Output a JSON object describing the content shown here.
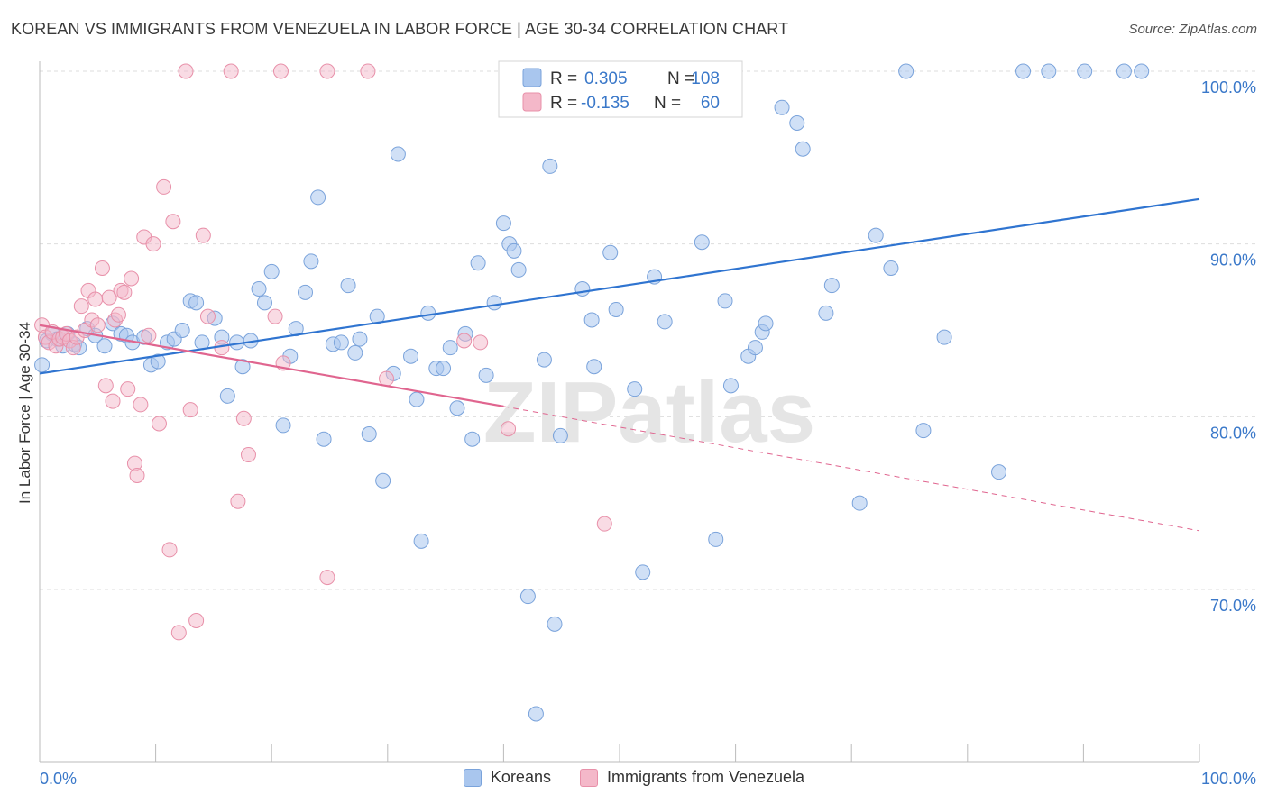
{
  "title": "KOREAN VS IMMIGRANTS FROM VENEZUELA IN LABOR FORCE | AGE 30-34 CORRELATION CHART",
  "source": "Source: ZipAtlas.com",
  "watermark": "ZIPatlas",
  "colors": {
    "blue_fill": "#a9c6ee",
    "blue_stroke": "#7aa3db",
    "blue_line": "#2f74d0",
    "pink_fill": "#f4b8c9",
    "pink_stroke": "#e890a9",
    "pink_line": "#e0658f",
    "axis_text": "#3a78c9",
    "grid": "#dddddd"
  },
  "legend": {
    "blue": {
      "r_label": "R = ",
      "r_value": "0.305",
      "n_label": "N = ",
      "n_value": "108"
    },
    "pink": {
      "r_label": "R = ",
      "r_value": "-0.135",
      "n_label": "N = ",
      "n_value": "60"
    }
  },
  "bottom_legend": {
    "blue": "Koreans",
    "pink": "Immigrants from Venezuela"
  },
  "chart_data": {
    "type": "scatter",
    "title": "KOREAN VS IMMIGRANTS FROM VENEZUELA IN LABOR FORCE | AGE 30-34 CORRELATION CHART",
    "xlabel": "",
    "ylabel": "In Labor Force | Age 30-34",
    "xlim": [
      0,
      100
    ],
    "ylim": [
      60,
      100
    ],
    "x_tick_labels": [
      "0.0%",
      "100.0%"
    ],
    "y_ticks": [
      70,
      80,
      90,
      100
    ],
    "y_tick_labels": [
      "70.0%",
      "80.0%",
      "90.0%",
      "100.0%"
    ],
    "grid": true,
    "series": [
      {
        "name": "Koreans",
        "r": 0.305,
        "n": 108,
        "trend": {
          "x": [
            0,
            100
          ],
          "y": [
            82.5,
            92.6
          ],
          "style": "solid"
        },
        "points": [
          [
            0.2,
            83.0
          ],
          [
            0.6,
            84.4
          ],
          [
            1.1,
            84.8
          ],
          [
            1.5,
            84.5
          ],
          [
            2.0,
            84.1
          ],
          [
            2.4,
            84.8
          ],
          [
            3.0,
            84.2
          ],
          [
            3.4,
            84.0
          ],
          [
            4.1,
            85.1
          ],
          [
            4.8,
            84.7
          ],
          [
            5.6,
            84.1
          ],
          [
            6.3,
            85.4
          ],
          [
            7.0,
            84.8
          ],
          [
            7.5,
            84.7
          ],
          [
            8.0,
            84.3
          ],
          [
            9.0,
            84.6
          ],
          [
            9.6,
            83.0
          ],
          [
            10.2,
            83.2
          ],
          [
            11.0,
            84.3
          ],
          [
            11.6,
            84.5
          ],
          [
            12.3,
            85.0
          ],
          [
            13.0,
            86.7
          ],
          [
            13.5,
            86.6
          ],
          [
            14.0,
            84.3
          ],
          [
            15.1,
            85.7
          ],
          [
            15.7,
            84.6
          ],
          [
            16.2,
            81.2
          ],
          [
            17.0,
            84.3
          ],
          [
            17.5,
            82.9
          ],
          [
            18.2,
            84.4
          ],
          [
            18.9,
            87.4
          ],
          [
            19.4,
            86.6
          ],
          [
            20.0,
            88.4
          ],
          [
            21.0,
            79.5
          ],
          [
            21.6,
            83.5
          ],
          [
            22.1,
            85.1
          ],
          [
            22.9,
            87.2
          ],
          [
            23.4,
            89.0
          ],
          [
            24.0,
            92.7
          ],
          [
            24.5,
            78.7
          ],
          [
            25.3,
            84.2
          ],
          [
            26.0,
            84.3
          ],
          [
            26.6,
            87.6
          ],
          [
            27.2,
            83.7
          ],
          [
            27.6,
            84.5
          ],
          [
            28.4,
            79.0
          ],
          [
            29.1,
            85.8
          ],
          [
            29.6,
            76.3
          ],
          [
            30.5,
            82.5
          ],
          [
            30.9,
            95.2
          ],
          [
            32.0,
            83.5
          ],
          [
            32.5,
            81.0
          ],
          [
            32.9,
            72.8
          ],
          [
            33.5,
            86.0
          ],
          [
            34.2,
            82.8
          ],
          [
            34.8,
            82.8
          ],
          [
            35.4,
            84.0
          ],
          [
            36.0,
            80.5
          ],
          [
            36.7,
            84.8
          ],
          [
            37.3,
            78.7
          ],
          [
            37.8,
            88.9
          ],
          [
            38.5,
            82.4
          ],
          [
            39.2,
            86.6
          ],
          [
            40.0,
            91.2
          ],
          [
            40.5,
            90.0
          ],
          [
            40.9,
            89.6
          ],
          [
            41.3,
            88.5
          ],
          [
            42.1,
            69.6
          ],
          [
            42.8,
            62.8
          ],
          [
            43.5,
            83.3
          ],
          [
            44.0,
            94.5
          ],
          [
            44.4,
            68.0
          ],
          [
            44.9,
            78.9
          ],
          [
            46.8,
            87.4
          ],
          [
            47.6,
            85.6
          ],
          [
            47.8,
            82.9
          ],
          [
            49.2,
            89.5
          ],
          [
            49.7,
            86.2
          ],
          [
            50.1,
            100.0
          ],
          [
            51.3,
            81.6
          ],
          [
            52.0,
            71.0
          ],
          [
            53.0,
            88.1
          ],
          [
            53.9,
            85.5
          ],
          [
            57.1,
            90.1
          ],
          [
            58.3,
            72.9
          ],
          [
            59.1,
            86.7
          ],
          [
            59.6,
            81.8
          ],
          [
            61.1,
            83.5
          ],
          [
            61.7,
            84.0
          ],
          [
            62.3,
            84.9
          ],
          [
            62.6,
            85.4
          ],
          [
            64.0,
            97.9
          ],
          [
            65.3,
            97.0
          ],
          [
            65.8,
            95.5
          ],
          [
            67.8,
            86.0
          ],
          [
            68.3,
            87.6
          ],
          [
            70.7,
            75.0
          ],
          [
            72.1,
            90.5
          ],
          [
            73.4,
            88.6
          ],
          [
            74.7,
            100.0
          ],
          [
            76.2,
            79.2
          ],
          [
            78.0,
            84.6
          ],
          [
            82.7,
            76.8
          ],
          [
            84.8,
            100.0
          ],
          [
            87.0,
            100.0
          ],
          [
            90.1,
            100.0
          ],
          [
            93.5,
            100.0
          ],
          [
            95.0,
            100.0
          ]
        ]
      },
      {
        "name": "Immigrants from Venezuela",
        "r": -0.135,
        "n": 60,
        "trend": {
          "solid": {
            "x": [
              0,
              40
            ],
            "y": [
              85.3,
              80.6
            ]
          },
          "dashed": {
            "x": [
              40,
              100
            ],
            "y": [
              80.6,
              73.4
            ]
          }
        },
        "points": [
          [
            0.2,
            85.3
          ],
          [
            0.5,
            84.6
          ],
          [
            0.8,
            84.3
          ],
          [
            1.1,
            84.9
          ],
          [
            1.4,
            84.1
          ],
          [
            1.7,
            84.5
          ],
          [
            2.0,
            84.6
          ],
          [
            2.3,
            84.8
          ],
          [
            2.6,
            84.4
          ],
          [
            2.9,
            84.0
          ],
          [
            3.2,
            84.6
          ],
          [
            3.6,
            86.4
          ],
          [
            3.9,
            85.0
          ],
          [
            4.2,
            87.3
          ],
          [
            4.5,
            85.6
          ],
          [
            4.8,
            86.8
          ],
          [
            5.0,
            85.3
          ],
          [
            5.4,
            88.6
          ],
          [
            5.7,
            81.8
          ],
          [
            6.0,
            86.9
          ],
          [
            6.3,
            80.9
          ],
          [
            6.5,
            85.6
          ],
          [
            6.8,
            85.9
          ],
          [
            7.0,
            87.3
          ],
          [
            7.3,
            87.2
          ],
          [
            7.6,
            81.6
          ],
          [
            7.9,
            88.0
          ],
          [
            8.2,
            77.3
          ],
          [
            8.4,
            76.6
          ],
          [
            8.7,
            80.7
          ],
          [
            9.0,
            90.4
          ],
          [
            9.4,
            84.7
          ],
          [
            9.8,
            90.0
          ],
          [
            10.3,
            79.6
          ],
          [
            10.7,
            93.3
          ],
          [
            11.2,
            72.3
          ],
          [
            11.5,
            91.3
          ],
          [
            12.0,
            67.5
          ],
          [
            12.6,
            100.0
          ],
          [
            13.0,
            80.4
          ],
          [
            13.5,
            68.2
          ],
          [
            14.1,
            90.5
          ],
          [
            14.5,
            85.8
          ],
          [
            15.7,
            84.0
          ],
          [
            16.5,
            100.0
          ],
          [
            17.1,
            75.1
          ],
          [
            17.6,
            79.9
          ],
          [
            18.0,
            77.8
          ],
          [
            20.3,
            85.8
          ],
          [
            20.8,
            100.0
          ],
          [
            21.0,
            83.1
          ],
          [
            24.8,
            70.7
          ],
          [
            24.8,
            100.0
          ],
          [
            28.3,
            100.0
          ],
          [
            29.9,
            82.2
          ],
          [
            36.6,
            84.4
          ],
          [
            38.0,
            84.3
          ],
          [
            40.4,
            79.3
          ],
          [
            40.6,
            100.0
          ],
          [
            48.7,
            73.8
          ]
        ]
      }
    ]
  }
}
